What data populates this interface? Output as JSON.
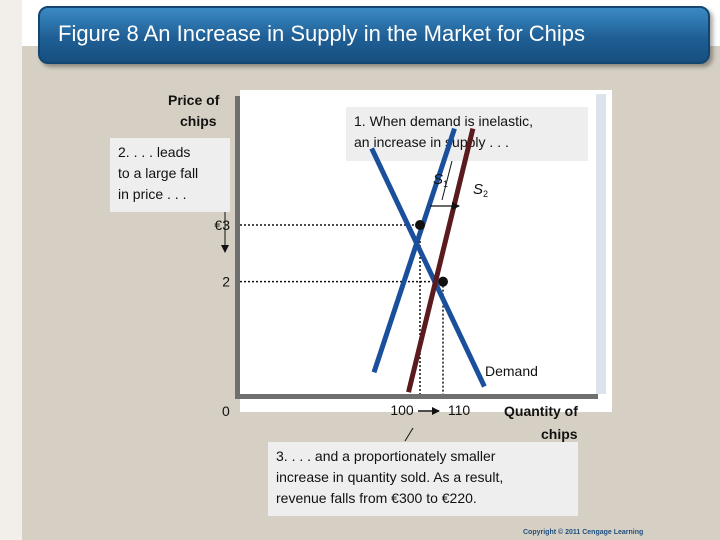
{
  "title": "Figure 8 An Increase in Supply in the Market for Chips",
  "copyright": "Copyright © 2011 Cengage Learning",
  "callouts": {
    "one_line1": "1. When demand is inelastic,",
    "one_line2": "an increase in supply  . . .",
    "two_line1": "2. . . . leads",
    "two_line2": "to a large fall",
    "two_line3": "in price . . .",
    "three_line1": "3.  . . . and a proportionately smaller",
    "three_line2": "increase in quantity sold. As a result,",
    "three_line3": "revenue falls from €300 to €220."
  },
  "colors": {
    "banner": "#1f5f95",
    "demand": "#1a4f9c",
    "supply1": "#1a4f9c",
    "supply2": "#5a1a1e",
    "callout_bg": "#eeeeee"
  },
  "chart_data": {
    "type": "line",
    "ylabel_line1": "Price of",
    "ylabel_line2": "chips",
    "xlabel_line1": "Quantity of",
    "xlabel_line2": "chips",
    "origin_label": "0",
    "y_ticks": [
      {
        "value": 3,
        "label": "€3"
      },
      {
        "value": 2,
        "label": "2"
      }
    ],
    "x_ticks": [
      {
        "value": 100,
        "label": "100"
      },
      {
        "value": 110,
        "label": "110"
      }
    ],
    "series": [
      {
        "name": "Demand",
        "points": [
          [
            79,
            4.35
          ],
          [
            128,
            0.15
          ]
        ]
      },
      {
        "name": "S1",
        "points": [
          [
            80,
            0.4
          ],
          [
            115,
            4.7
          ]
        ]
      },
      {
        "name": "S2",
        "points": [
          [
            95,
            0.05
          ],
          [
            123,
            4.7
          ]
        ]
      }
    ],
    "equilibria": [
      {
        "q": 100,
        "p": 3
      },
      {
        "q": 110,
        "p": 2
      }
    ],
    "supply_labels": [
      {
        "letter": "S",
        "sub": "1"
      },
      {
        "letter": "S",
        "sub": "2"
      }
    ],
    "demand_label": "Demand",
    "shift_arrow": "right"
  }
}
